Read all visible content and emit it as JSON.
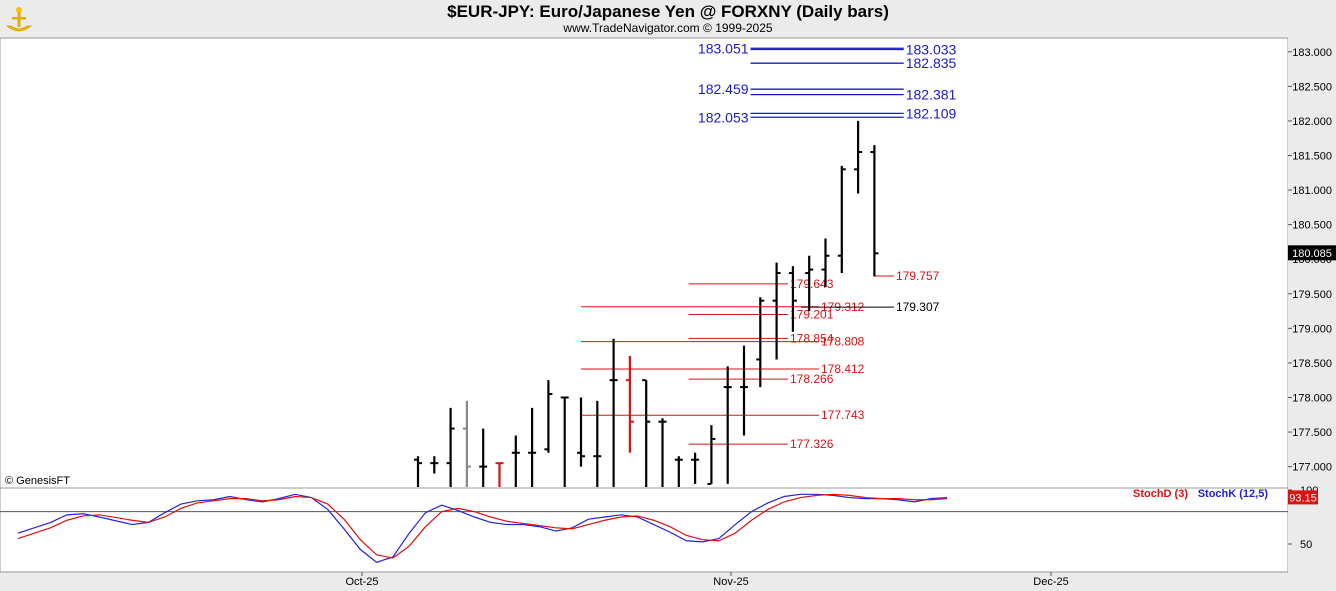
{
  "header": {
    "title": "$EUR-JPY:  Euro/Japanese Yen @ FORXNY  (Daily bars)",
    "subtitle": "www.TradeNavigator.com © 1999-2025"
  },
  "copyright": "© GenesisFT",
  "colors": {
    "bars": "#000000",
    "down_bar_highlight": "#dd1111",
    "gray_bar": "#888888",
    "levels_blue": "#1a1acc",
    "levels_red": "#dd1111",
    "stoch_d": "#dd1111",
    "stoch_k": "#2222dd",
    "last_price_bg": "#000000",
    "stoch_value_bg": "#dd1111"
  },
  "chart_data": [
    {
      "type": "ohlc",
      "title": "$EUR-JPY:  Euro/Japanese Yen @ FORXNY  (Daily bars)",
      "ylim": [
        176.7,
        183.4
      ],
      "y_ticks": [
        "177.000",
        "177.500",
        "178.000",
        "178.500",
        "179.000",
        "179.500",
        "180.000",
        "180.500",
        "181.000",
        "181.500",
        "182.000",
        "182.500",
        "183.000"
      ],
      "x_ticks": [
        "Oct-25",
        "Nov-25",
        "Dec-25"
      ],
      "last_price": "180.085",
      "bars": [
        {
          "o": 177.1,
          "h": 177.15,
          "l": 176.7,
          "c": 177.05
        },
        {
          "o": 177.05,
          "h": 177.15,
          "l": 176.9,
          "c": 177.05
        },
        {
          "o": 177.05,
          "h": 177.85,
          "l": 176.7,
          "c": 177.55
        },
        {
          "o": 177.55,
          "h": 177.95,
          "l": 176.7,
          "c": 177.0,
          "gray": true
        },
        {
          "o": 177.0,
          "h": 177.55,
          "l": 176.7,
          "c": 177.0
        },
        {
          "o": 177.05,
          "h": 177.05,
          "l": 176.7,
          "c": 177.05,
          "red": true
        },
        {
          "o": 177.2,
          "h": 177.45,
          "l": 176.7,
          "c": 177.2
        },
        {
          "o": 177.2,
          "h": 177.85,
          "l": 176.7,
          "c": 177.2
        },
        {
          "o": 177.25,
          "h": 178.25,
          "l": 177.2,
          "c": 178.05
        },
        {
          "o": 178.0,
          "h": 178.0,
          "l": 176.7,
          "c": 178.0
        },
        {
          "o": 177.2,
          "h": 178.0,
          "l": 177.0,
          "c": 177.15
        },
        {
          "o": 177.15,
          "h": 177.95,
          "l": 176.7,
          "c": 177.15
        },
        {
          "o": 178.25,
          "h": 178.85,
          "l": 176.7,
          "c": 178.25
        },
        {
          "o": 178.25,
          "h": 178.6,
          "l": 177.2,
          "c": 177.65,
          "red": true
        },
        {
          "o": 178.25,
          "h": 178.25,
          "l": 176.7,
          "c": 177.65
        },
        {
          "o": 177.65,
          "h": 177.7,
          "l": 176.7,
          "c": 177.65
        },
        {
          "o": 177.1,
          "h": 177.15,
          "l": 176.7,
          "c": 177.1
        },
        {
          "o": 177.1,
          "h": 177.2,
          "l": 176.75,
          "c": 177.1
        },
        {
          "o": 176.75,
          "h": 177.6,
          "l": 176.75,
          "c": 177.4
        },
        {
          "o": 178.15,
          "h": 178.45,
          "l": 176.75,
          "c": 178.15
        },
        {
          "o": 178.15,
          "h": 178.75,
          "l": 177.45,
          "c": 178.15
        },
        {
          "o": 178.55,
          "h": 179.45,
          "l": 178.15,
          "c": 179.4
        },
        {
          "o": 179.4,
          "h": 179.95,
          "l": 178.55,
          "c": 179.8
        },
        {
          "o": 179.8,
          "h": 179.9,
          "l": 178.95,
          "c": 179.4
        },
        {
          "o": 179.8,
          "h": 180.05,
          "l": 179.25,
          "c": 179.85
        },
        {
          "o": 179.85,
          "h": 180.3,
          "l": 179.6,
          "c": 180.05
        },
        {
          "o": 180.05,
          "h": 181.35,
          "l": 179.8,
          "c": 181.3
        },
        {
          "o": 181.3,
          "h": 182.0,
          "l": 180.95,
          "c": 181.55
        },
        {
          "o": 181.55,
          "h": 181.65,
          "l": 179.75,
          "c": 180.085
        }
      ],
      "levels": [
        {
          "value": "183.051",
          "kind": "left-label",
          "color": "blue",
          "x_start_bar": 20.4,
          "x_end_bar": 29.8
        },
        {
          "value": "183.033",
          "kind": "right-label",
          "color": "blue",
          "x_start_bar": 20.4,
          "x_end_bar": 29.8
        },
        {
          "value": "182.835",
          "kind": "right-label",
          "color": "blue",
          "x_start_bar": 20.4,
          "x_end_bar": 29.8
        },
        {
          "value": "182.459",
          "kind": "left-label",
          "color": "blue",
          "x_start_bar": 20.4,
          "x_end_bar": 29.8
        },
        {
          "value": "182.381",
          "kind": "right-label",
          "color": "blue",
          "x_start_bar": 20.4,
          "x_end_bar": 29.8
        },
        {
          "value": "182.109",
          "kind": "right-label",
          "color": "blue",
          "x_start_bar": 20.4,
          "x_end_bar": 29.8
        },
        {
          "value": "182.053",
          "kind": "left-label",
          "color": "blue",
          "x_start_bar": 20.4,
          "x_end_bar": 29.8
        },
        {
          "value": "179.757",
          "kind": "right-label",
          "color": "red",
          "x_start_bar": 28.0,
          "x_end_bar": 29.2
        },
        {
          "value": "179.643",
          "kind": "right-label",
          "color": "red",
          "x_start_bar": 16.6,
          "x_end_bar": 22.7
        },
        {
          "value": "179.312",
          "kind": "right-label",
          "color": "red",
          "x_start_bar": 10.0,
          "x_end_bar": 24.6
        },
        {
          "value": "179.307",
          "kind": "right-label",
          "color": "black",
          "x_start_bar": 23.5,
          "x_end_bar": 29.2
        },
        {
          "value": "179.201",
          "kind": "right-label",
          "color": "red",
          "x_start_bar": 16.6,
          "x_end_bar": 22.7
        },
        {
          "value": "178.854",
          "kind": "right-label",
          "color": "red",
          "x_start_bar": 16.6,
          "x_end_bar": 22.7
        },
        {
          "value": "178.808",
          "kind": "right-label",
          "color": "red",
          "x_start_bar": 10.0,
          "x_end_bar": 24.6
        },
        {
          "value": "178.412",
          "kind": "right-label",
          "color": "red",
          "x_start_bar": 10.0,
          "x_end_bar": 24.6
        },
        {
          "value": "178.266",
          "kind": "right-label",
          "color": "red",
          "x_start_bar": 16.6,
          "x_end_bar": 22.7
        },
        {
          "value": "177.743",
          "kind": "right-label",
          "color": "red",
          "x_start_bar": 10.0,
          "x_end_bar": 24.6
        },
        {
          "value": "177.326",
          "kind": "right-label",
          "color": "red",
          "x_start_bar": 16.6,
          "x_end_bar": 22.7
        }
      ]
    },
    {
      "type": "line",
      "ylim": [
        25,
        100
      ],
      "y_ticks": [
        "50",
        "100"
      ],
      "reference_line": 80,
      "legend": [
        "StochD (3)",
        "StochK (12,5)"
      ],
      "current_value": "93.15",
      "series": [
        {
          "name": "StochK (12,5)",
          "color": "stoch_k",
          "x": [
            0,
            2,
            3,
            4,
            5,
            7,
            8,
            9,
            10,
            11,
            12,
            13,
            14,
            15,
            16,
            17,
            18,
            19,
            20,
            21,
            22,
            23,
            24,
            25,
            26,
            27,
            28,
            29,
            30,
            31,
            32,
            33,
            34,
            35,
            36,
            37,
            38,
            39,
            40,
            41,
            42,
            43,
            44,
            45,
            46,
            47,
            48,
            49,
            50,
            51,
            52,
            53,
            54,
            55,
            56,
            57
          ],
          "values": [
            60,
            70,
            77,
            78,
            75,
            68,
            70,
            79,
            87,
            90,
            91,
            94,
            91,
            89,
            92,
            96,
            93,
            82,
            64,
            45,
            33,
            38,
            60,
            79,
            86,
            81,
            75,
            70,
            68,
            68,
            66,
            62,
            65,
            73,
            75,
            77,
            75,
            68,
            61,
            53,
            52,
            55,
            68,
            80,
            88,
            94,
            96,
            96,
            95,
            93,
            92,
            92,
            91,
            89,
            92,
            93
          ]
        },
        {
          "name": "StochD (3)",
          "color": "stoch_d",
          "x": [
            0,
            2,
            3,
            4,
            5,
            7,
            8,
            9,
            10,
            11,
            12,
            13,
            14,
            15,
            16,
            17,
            18,
            19,
            20,
            21,
            22,
            23,
            24,
            25,
            26,
            27,
            28,
            29,
            30,
            31,
            32,
            33,
            34,
            35,
            36,
            37,
            38,
            39,
            40,
            41,
            42,
            43,
            44,
            45,
            46,
            47,
            48,
            49,
            50,
            51,
            52,
            53,
            54,
            55,
            56,
            57
          ],
          "values": [
            55,
            65,
            72,
            76,
            77,
            72,
            70,
            75,
            83,
            88,
            90,
            92,
            92,
            90,
            91,
            94,
            93,
            87,
            73,
            54,
            40,
            37,
            48,
            66,
            80,
            83,
            80,
            75,
            71,
            69,
            67,
            65,
            64,
            68,
            72,
            75,
            76,
            72,
            66,
            58,
            54,
            53,
            60,
            72,
            82,
            89,
            93,
            95,
            96,
            95,
            93,
            92,
            92,
            91,
            91,
            92
          ]
        }
      ]
    }
  ]
}
